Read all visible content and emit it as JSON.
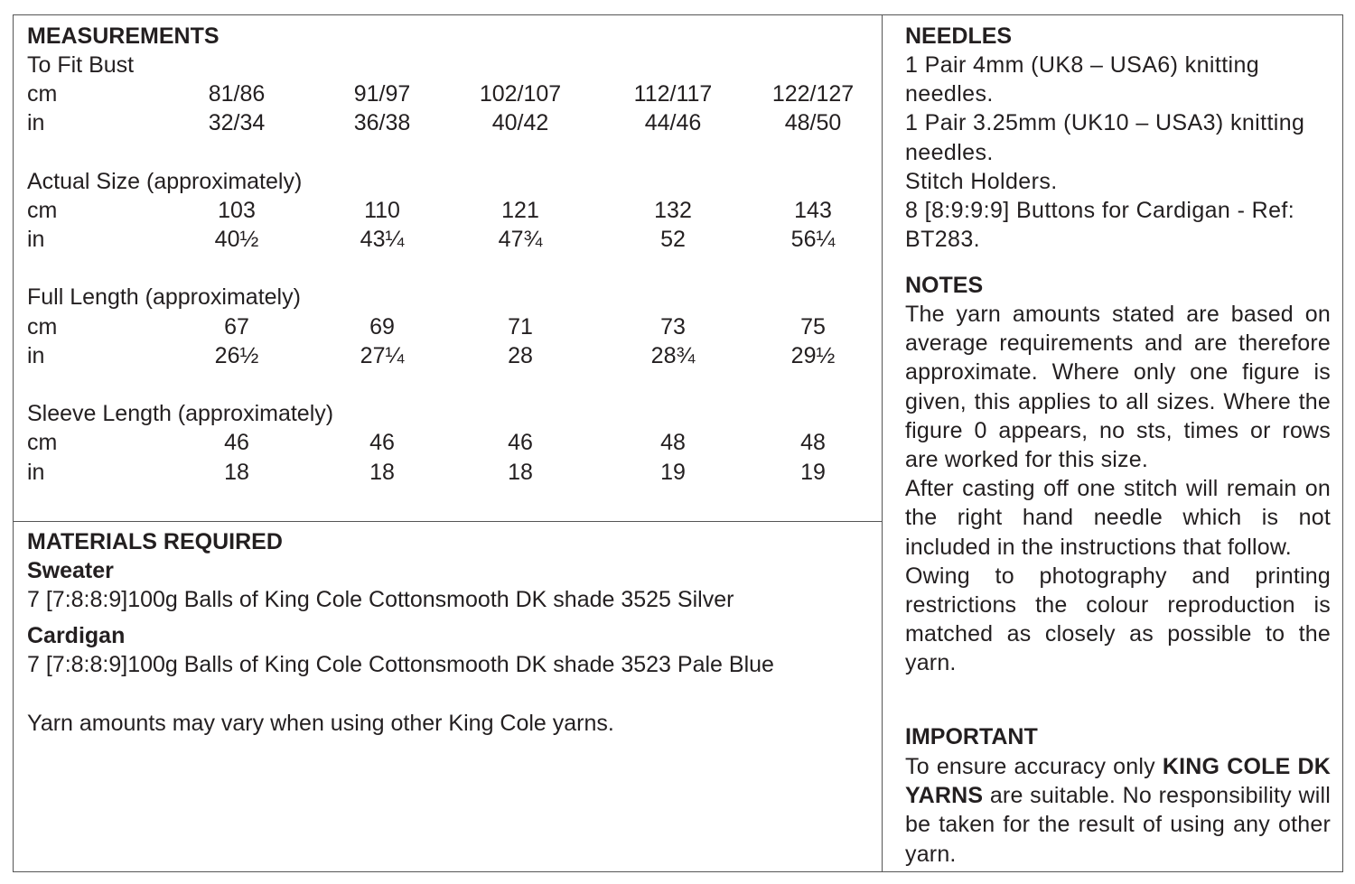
{
  "measurements": {
    "title": "MEASUREMENTS",
    "sections": [
      {
        "heading": "To Fit Bust",
        "rows": [
          {
            "unit": "cm",
            "values": [
              "81/86",
              "91/97",
              "102/107",
              "112/117",
              "122/127"
            ]
          },
          {
            "unit": "in",
            "values": [
              "32/34",
              "36/38",
              "40/42",
              "44/46",
              "48/50"
            ]
          }
        ]
      },
      {
        "heading": "Actual Size (approximately)",
        "rows": [
          {
            "unit": "cm",
            "values": [
              "103",
              "110",
              "121",
              "132",
              "143"
            ]
          },
          {
            "unit": "in",
            "values": [
              "40½",
              "43¼",
              "47¾",
              "52",
              "56¼"
            ]
          }
        ]
      },
      {
        "heading": "Full Length (approximately)",
        "rows": [
          {
            "unit": "cm",
            "values": [
              "67",
              "69",
              "71",
              "73",
              "75"
            ]
          },
          {
            "unit": "in",
            "values": [
              "26½",
              "27¼",
              "28",
              "28¾",
              "29½"
            ]
          }
        ]
      },
      {
        "heading": "Sleeve Length (approximately)",
        "rows": [
          {
            "unit": "cm",
            "values": [
              "46",
              "46",
              "46",
              "48",
              "48"
            ]
          },
          {
            "unit": "in",
            "values": [
              "18",
              "18",
              "18",
              "19",
              "19"
            ]
          }
        ]
      }
    ]
  },
  "materials": {
    "title": "MATERIALS REQUIRED",
    "items": [
      {
        "name": "Sweater",
        "text": "7 [7:8:8:9]100g Balls of King Cole Cottonsmooth DK shade 3525 Silver"
      },
      {
        "name": "Cardigan",
        "text": "7 [7:8:8:9]100g Balls of King Cole Cottonsmooth DK shade 3523 Pale Blue"
      }
    ],
    "note": "Yarn amounts may vary when using other King Cole yarns."
  },
  "needles": {
    "title": "NEEDLES",
    "lines": [
      "1 Pair 4mm (UK8 – USA6) knitting needles.",
      "1 Pair 3.25mm (UK10 – USA3) knitting needles.",
      "Stitch Holders.",
      "8 [8:9:9:9] Buttons for Cardigan - Ref: BT283."
    ]
  },
  "notes": {
    "title": "NOTES",
    "paragraphs": [
      "The yarn amounts stated are based on average requirements and are therefore approximate. Where only one figure is given, this applies to all sizes. Where the figure 0 appears, no sts, times  or rows are worked for this size.",
      "After casting off one stitch will remain on the right hand needle which is not included in the instructions that follow.",
      "Owing to photography and printing restrictions the colour reproduction is matched as closely as possible to the yarn."
    ]
  },
  "important": {
    "title": "IMPORTANT",
    "text_before": "To ensure accuracy only",
    "bold": "KING COLE DK YARNS",
    "text_after": "are suitable. No responsibility will be taken for the result of using any other yarn."
  }
}
